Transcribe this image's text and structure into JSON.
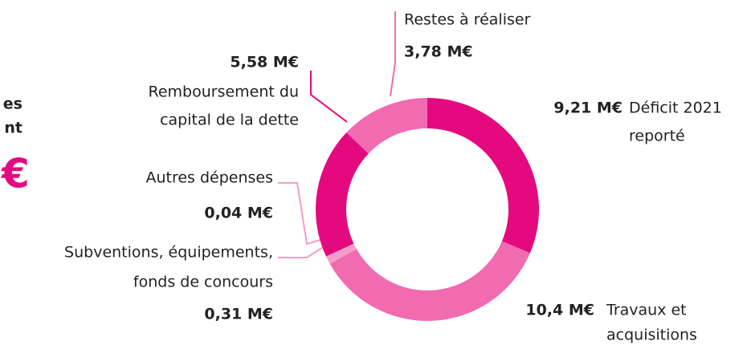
{
  "side_panel": {
    "lines": [
      "es",
      "nt"
    ],
    "amount": "€"
  },
  "chart_data": {
    "type": "donut",
    "categories": [
      [
        "Déficit 2021",
        "reporté"
      ],
      [
        "Travaux et",
        "acquisitions"
      ],
      [
        "Subventions, équipements,",
        "fonds de concours"
      ],
      [
        "Autres dépenses"
      ],
      [
        "Remboursement du",
        "capital de la dette"
      ],
      [
        "Restes à réaliser"
      ]
    ],
    "values": [
      9.21,
      10.4,
      0.31,
      0.04,
      5.58,
      3.78
    ],
    "value_labels": [
      "9,21 M€",
      "10,4 M€",
      "0,31 M€",
      "0,04 M€",
      "5,58 M€",
      "3,78 M€"
    ],
    "colors": [
      "#e5097f",
      "#f06bb0",
      "#f59cc9",
      "#f59cc9",
      "#e5097f",
      "#f06bb0"
    ]
  }
}
